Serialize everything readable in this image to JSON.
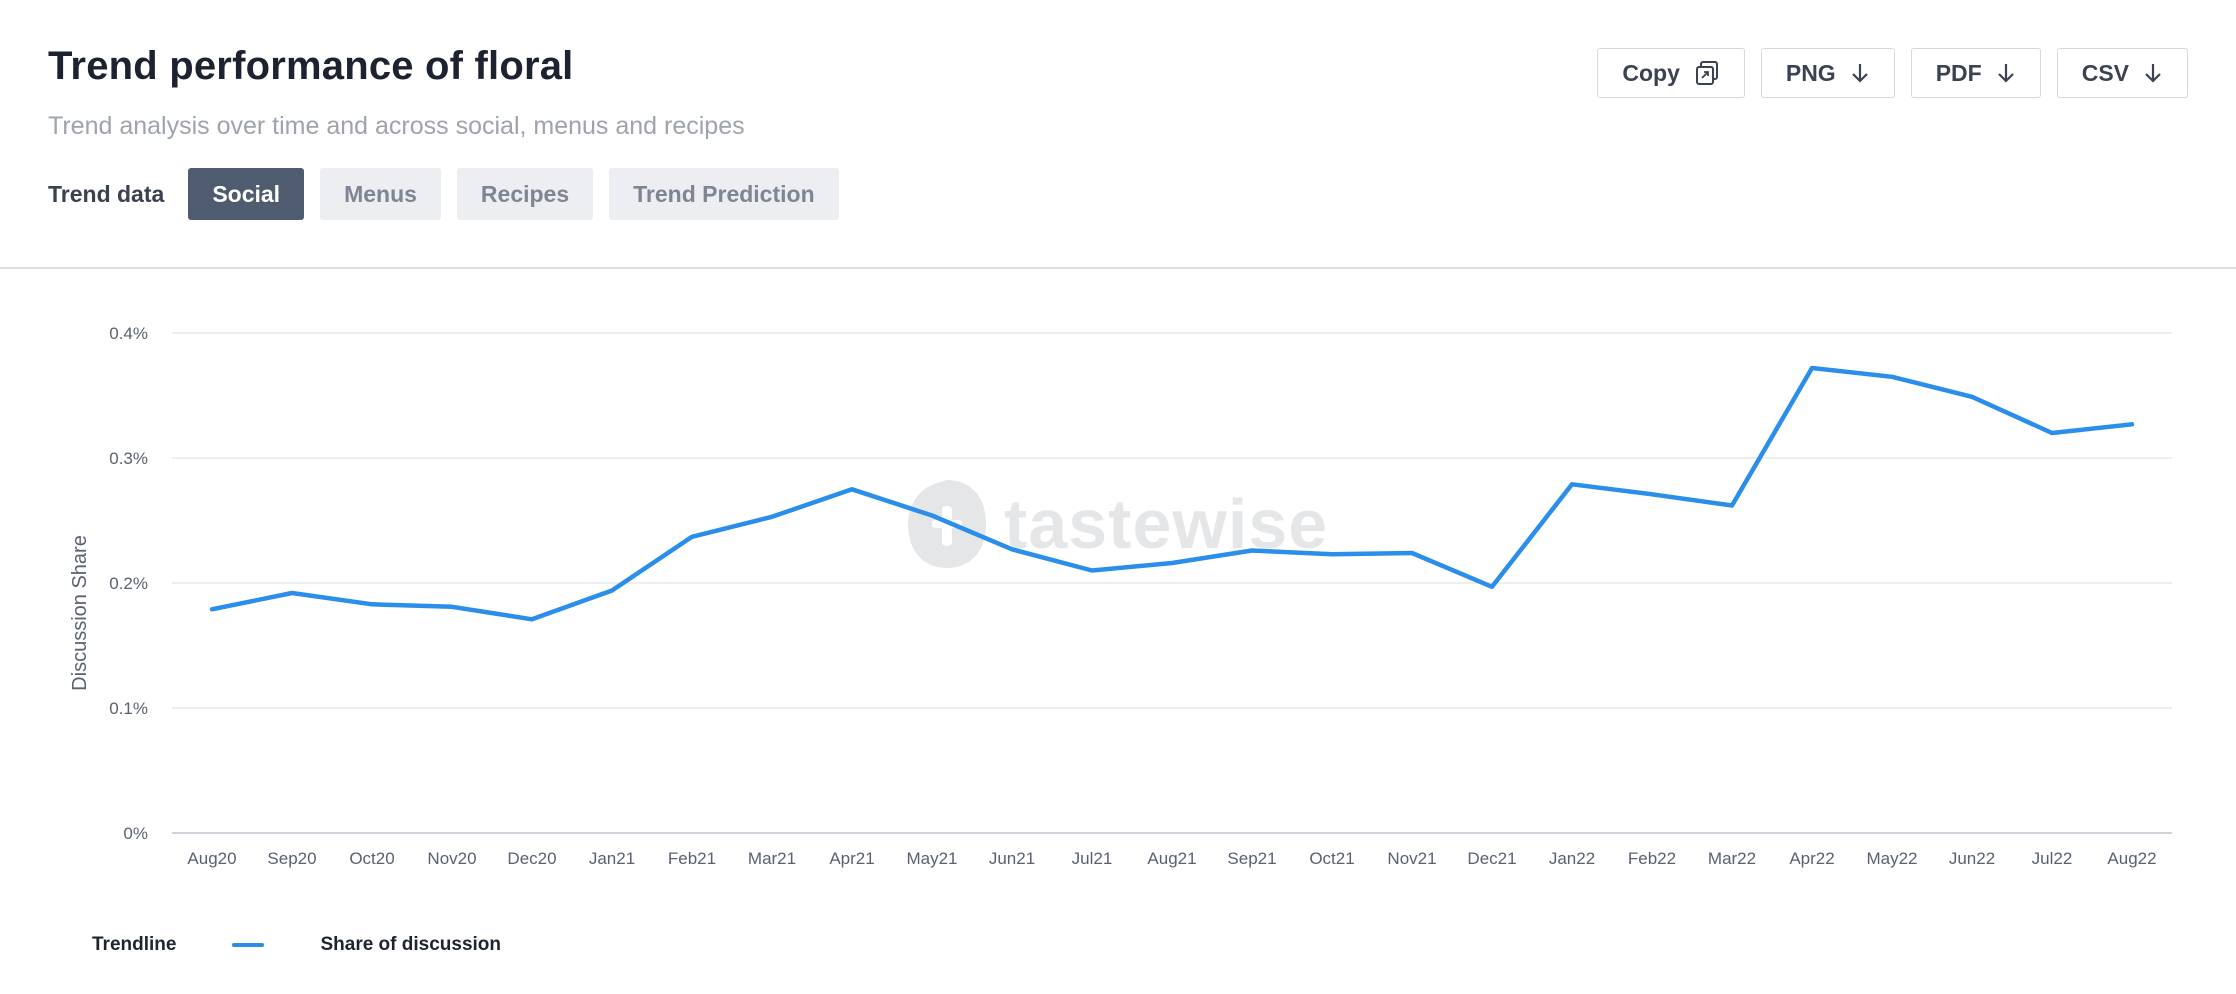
{
  "header": {
    "title": "Trend performance of floral",
    "subtitle": "Trend analysis over time and across social, menus and recipes",
    "trend_label": "Trend data",
    "tabs": [
      {
        "label": "Social",
        "active": true
      },
      {
        "label": "Menus",
        "active": false
      },
      {
        "label": "Recipes",
        "active": false
      },
      {
        "label": "Trend Prediction",
        "active": false
      }
    ],
    "exports": [
      {
        "label": "Copy",
        "icon": "copy-icon"
      },
      {
        "label": "PNG",
        "icon": "download-arrow-icon"
      },
      {
        "label": "PDF",
        "icon": "download-arrow-icon"
      },
      {
        "label": "CSV",
        "icon": "download-arrow-icon"
      }
    ]
  },
  "watermark": {
    "text": "tastewise"
  },
  "legend": {
    "title": "Trendline",
    "series_label": "Share of discussion"
  },
  "colors": {
    "line": "#2b8eea",
    "active_tab": "#4f5b6f",
    "grid": "#e6e8eb"
  },
  "chart_data": {
    "type": "line",
    "title": "",
    "xlabel": "",
    "ylabel": "Discussion Share",
    "ylim": [
      0,
      0.4
    ],
    "y_ticks": [
      "0%",
      "0.1%",
      "0.2%",
      "0.3%",
      "0.4%"
    ],
    "y_tick_values": [
      0,
      0.1,
      0.2,
      0.3,
      0.4
    ],
    "grid": true,
    "legend_position": "bottom-left",
    "categories": [
      "Aug20",
      "Sep20",
      "Oct20",
      "Nov20",
      "Dec20",
      "Jan21",
      "Feb21",
      "Mar21",
      "Apr21",
      "May21",
      "Jun21",
      "Jul21",
      "Aug21",
      "Sep21",
      "Oct21",
      "Nov21",
      "Dec21",
      "Jan22",
      "Feb22",
      "Mar22",
      "Apr22",
      "May22",
      "Jun22",
      "Jul22",
      "Aug22"
    ],
    "series": [
      {
        "name": "Share of discussion",
        "values": [
          0.179,
          0.192,
          0.183,
          0.181,
          0.171,
          0.194,
          0.237,
          0.253,
          0.275,
          0.254,
          0.227,
          0.21,
          0.216,
          0.226,
          0.223,
          0.224,
          0.197,
          0.279,
          0.271,
          0.262,
          0.372,
          0.365,
          0.349,
          0.32,
          0.327
        ]
      }
    ]
  }
}
